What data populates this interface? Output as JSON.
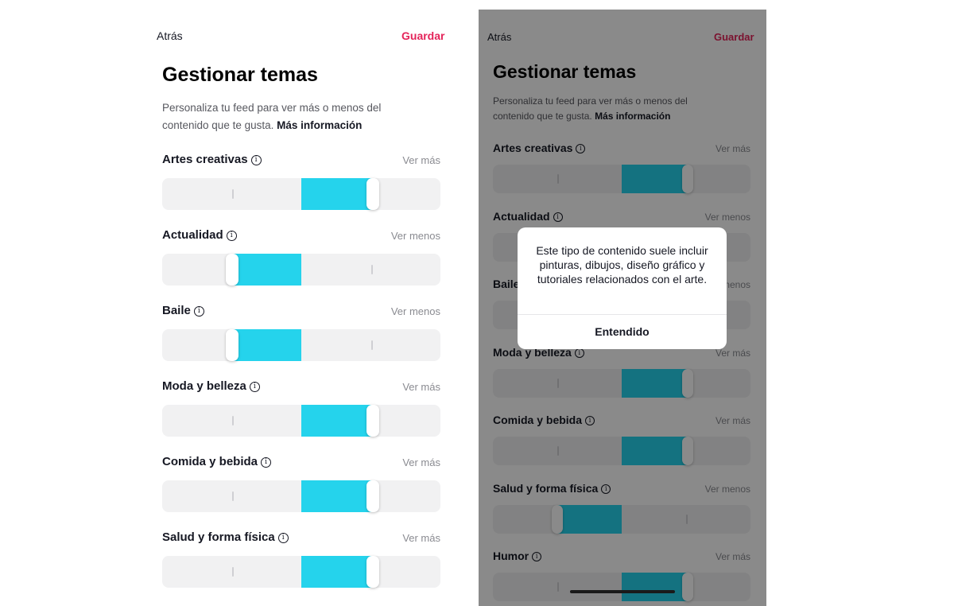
{
  "left": {
    "header": {
      "back_label": "Atrás",
      "save_label": "Guardar"
    },
    "title": "Gestionar temas",
    "description": "Personaliza tu feed para ver más o menos del contenido que te gusta.",
    "more_info_link": "Más información",
    "topics": [
      {
        "label": "Artes creativas",
        "toggle": "Ver más",
        "level": "more"
      },
      {
        "label": "Actualidad",
        "toggle": "Ver menos",
        "level": "less"
      },
      {
        "label": "Baile",
        "toggle": "Ver menos",
        "level": "less"
      },
      {
        "label": "Moda y belleza",
        "toggle": "Ver más",
        "level": "more"
      },
      {
        "label": "Comida y bebida",
        "toggle": "Ver más",
        "level": "more"
      },
      {
        "label": "Salud y forma física",
        "toggle": "Ver más",
        "level": "more"
      }
    ]
  },
  "right": {
    "header": {
      "back_label": "Atrás",
      "save_label": "Guardar"
    },
    "title": "Gestionar temas",
    "description": "Personaliza tu feed para ver más o menos del contenido que te gusta.",
    "more_info_link": "Más información",
    "topics": [
      {
        "label": "Artes creativas",
        "toggle": "Ver más",
        "level": "more"
      },
      {
        "label": "Actualidad",
        "toggle": "Ver menos",
        "level": "less"
      },
      {
        "label": "Baile",
        "toggle": "Ver menos",
        "level": "less"
      },
      {
        "label": "Moda y belleza",
        "toggle": "Ver más",
        "level": "more"
      },
      {
        "label": "Comida y bebida",
        "toggle": "Ver más",
        "level": "more"
      },
      {
        "label": "Salud y forma física",
        "toggle": "Ver menos",
        "level": "less"
      },
      {
        "label": "Humor",
        "toggle": "Ver más",
        "level": "more"
      }
    ],
    "modal": {
      "text": "Este tipo de contenido suele incluir pinturas, dibujos, diseño gráfico y tutoriales relacionados con el arte.",
      "button_label": "Entendido"
    }
  },
  "colors": {
    "accent": "#e4245a",
    "slider_fill": "#25d3ec",
    "track": "#f1f1f2"
  },
  "icons": {
    "info": "info-icon"
  }
}
